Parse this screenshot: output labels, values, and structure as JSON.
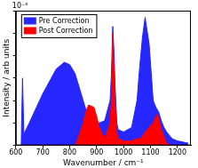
{
  "chart_data": {
    "type": "area",
    "x_label": "Wavenumber / cm⁻¹",
    "y_label": "Intensity / arb units",
    "annotation": "10⁻⁶",
    "x": [
      620,
      625,
      630,
      650,
      700,
      750,
      780,
      800,
      820,
      830,
      850,
      860,
      870,
      890,
      900,
      910,
      930,
      950,
      955,
      960,
      965,
      968,
      975,
      980,
      1000,
      1030,
      1050,
      1060,
      1070,
      1080,
      1095,
      1110,
      1120,
      1125,
      1130,
      1140,
      1150,
      1160,
      1180,
      1200,
      1240
    ],
    "series": [
      {
        "name": "Pre Correction",
        "color": "#2626ff",
        "values": [
          0,
          3.0,
          0.5,
          1.0,
          2.3,
          3.4,
          3.7,
          3.6,
          3.2,
          2.8,
          2.0,
          1.6,
          1.3,
          1.0,
          1.0,
          1.0,
          1.1,
          2.0,
          3.2,
          5.3,
          4.0,
          2.8,
          1.0,
          0.7,
          0.6,
          0.8,
          2.0,
          3.5,
          4.8,
          5.7,
          4.5,
          2.0,
          1.7,
          1.6,
          1.5,
          1.1,
          0.8,
          0.6,
          0.3,
          0.2,
          0.1
        ]
      },
      {
        "name": "Post Correction",
        "color": "#ff0000",
        "values": [
          0,
          0,
          0,
          0,
          0,
          0,
          0,
          0,
          0,
          0.3,
          1.0,
          1.5,
          1.8,
          1.7,
          1.3,
          0.8,
          0.3,
          1.0,
          2.0,
          5.0,
          3.0,
          2.0,
          0.6,
          0.3,
          0.2,
          0.2,
          0.3,
          0.3,
          0.4,
          0.6,
          0.8,
          1.0,
          1.3,
          1.4,
          1.2,
          0.7,
          0.4,
          0.1,
          0,
          0,
          0
        ]
      }
    ],
    "xlim": [
      600,
      1250
    ],
    "xticks": [
      600,
      700,
      800,
      900,
      1000,
      1100,
      1200
    ],
    "ylim": [
      0,
      6
    ],
    "yticks": [
      0,
      1,
      2,
      3,
      4,
      5,
      6
    ],
    "tick_labels": "x",
    "grid": false,
    "legend": "upper left"
  }
}
